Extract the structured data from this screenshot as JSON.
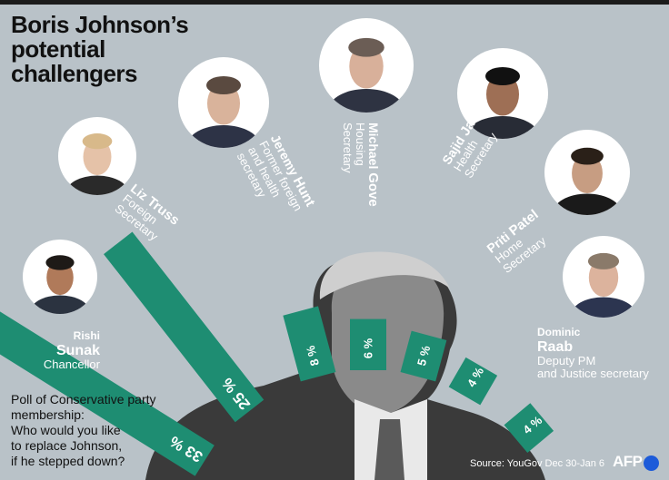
{
  "title": [
    "Boris Johnson’s",
    "potential",
    "challengers"
  ],
  "question": [
    "Poll of Conservative party",
    "membership:",
    "Who would you like",
    "to replace Johnson,",
    "if he stepped down?"
  ],
  "source": "Source: YouGov Dec 30-Jan 6",
  "logo": "AFP",
  "colors": {
    "bar": "#1e8d72",
    "background": "#b9c2c8",
    "text": "#ffffff"
  },
  "chart_data": {
    "type": "bar",
    "categories": [
      "Rishi Sunak",
      "Liz Truss",
      "Jeremy Hunt",
      "Michael Gove",
      "Sajid Javid",
      "Priti Patel",
      "Dominic Raab"
    ],
    "series": [
      {
        "values": [
          33,
          25,
          8,
          6,
          5,
          4,
          4
        ]
      }
    ],
    "value_labels": [
      "33 %",
      "25 %",
      "8 %",
      "6 %",
      "5 %",
      "4 %",
      "4 %"
    ],
    "candidates": [
      {
        "first": "Rishi",
        "last": "Sunak",
        "role": [
          "Chancellor"
        ]
      },
      {
        "first": "Liz",
        "last": "Truss",
        "role": [
          "Foreign",
          "Secretary"
        ]
      },
      {
        "first": "Jeremy",
        "last": "Hunt",
        "role": [
          "Former foreign",
          "and health",
          "secretary"
        ]
      },
      {
        "first": "Michael",
        "last": "Gove",
        "role": [
          "Housing",
          "Secretary"
        ]
      },
      {
        "first": "Sajid",
        "last": "Javid",
        "role": [
          "Health",
          "Secretary"
        ]
      },
      {
        "first": "Priti",
        "last": "Patel",
        "role": [
          "Home",
          "Secretary"
        ]
      },
      {
        "first": "Dominic",
        "last": "Raab",
        "role": [
          "Deputy PM",
          "and Justice secretary"
        ]
      }
    ]
  }
}
